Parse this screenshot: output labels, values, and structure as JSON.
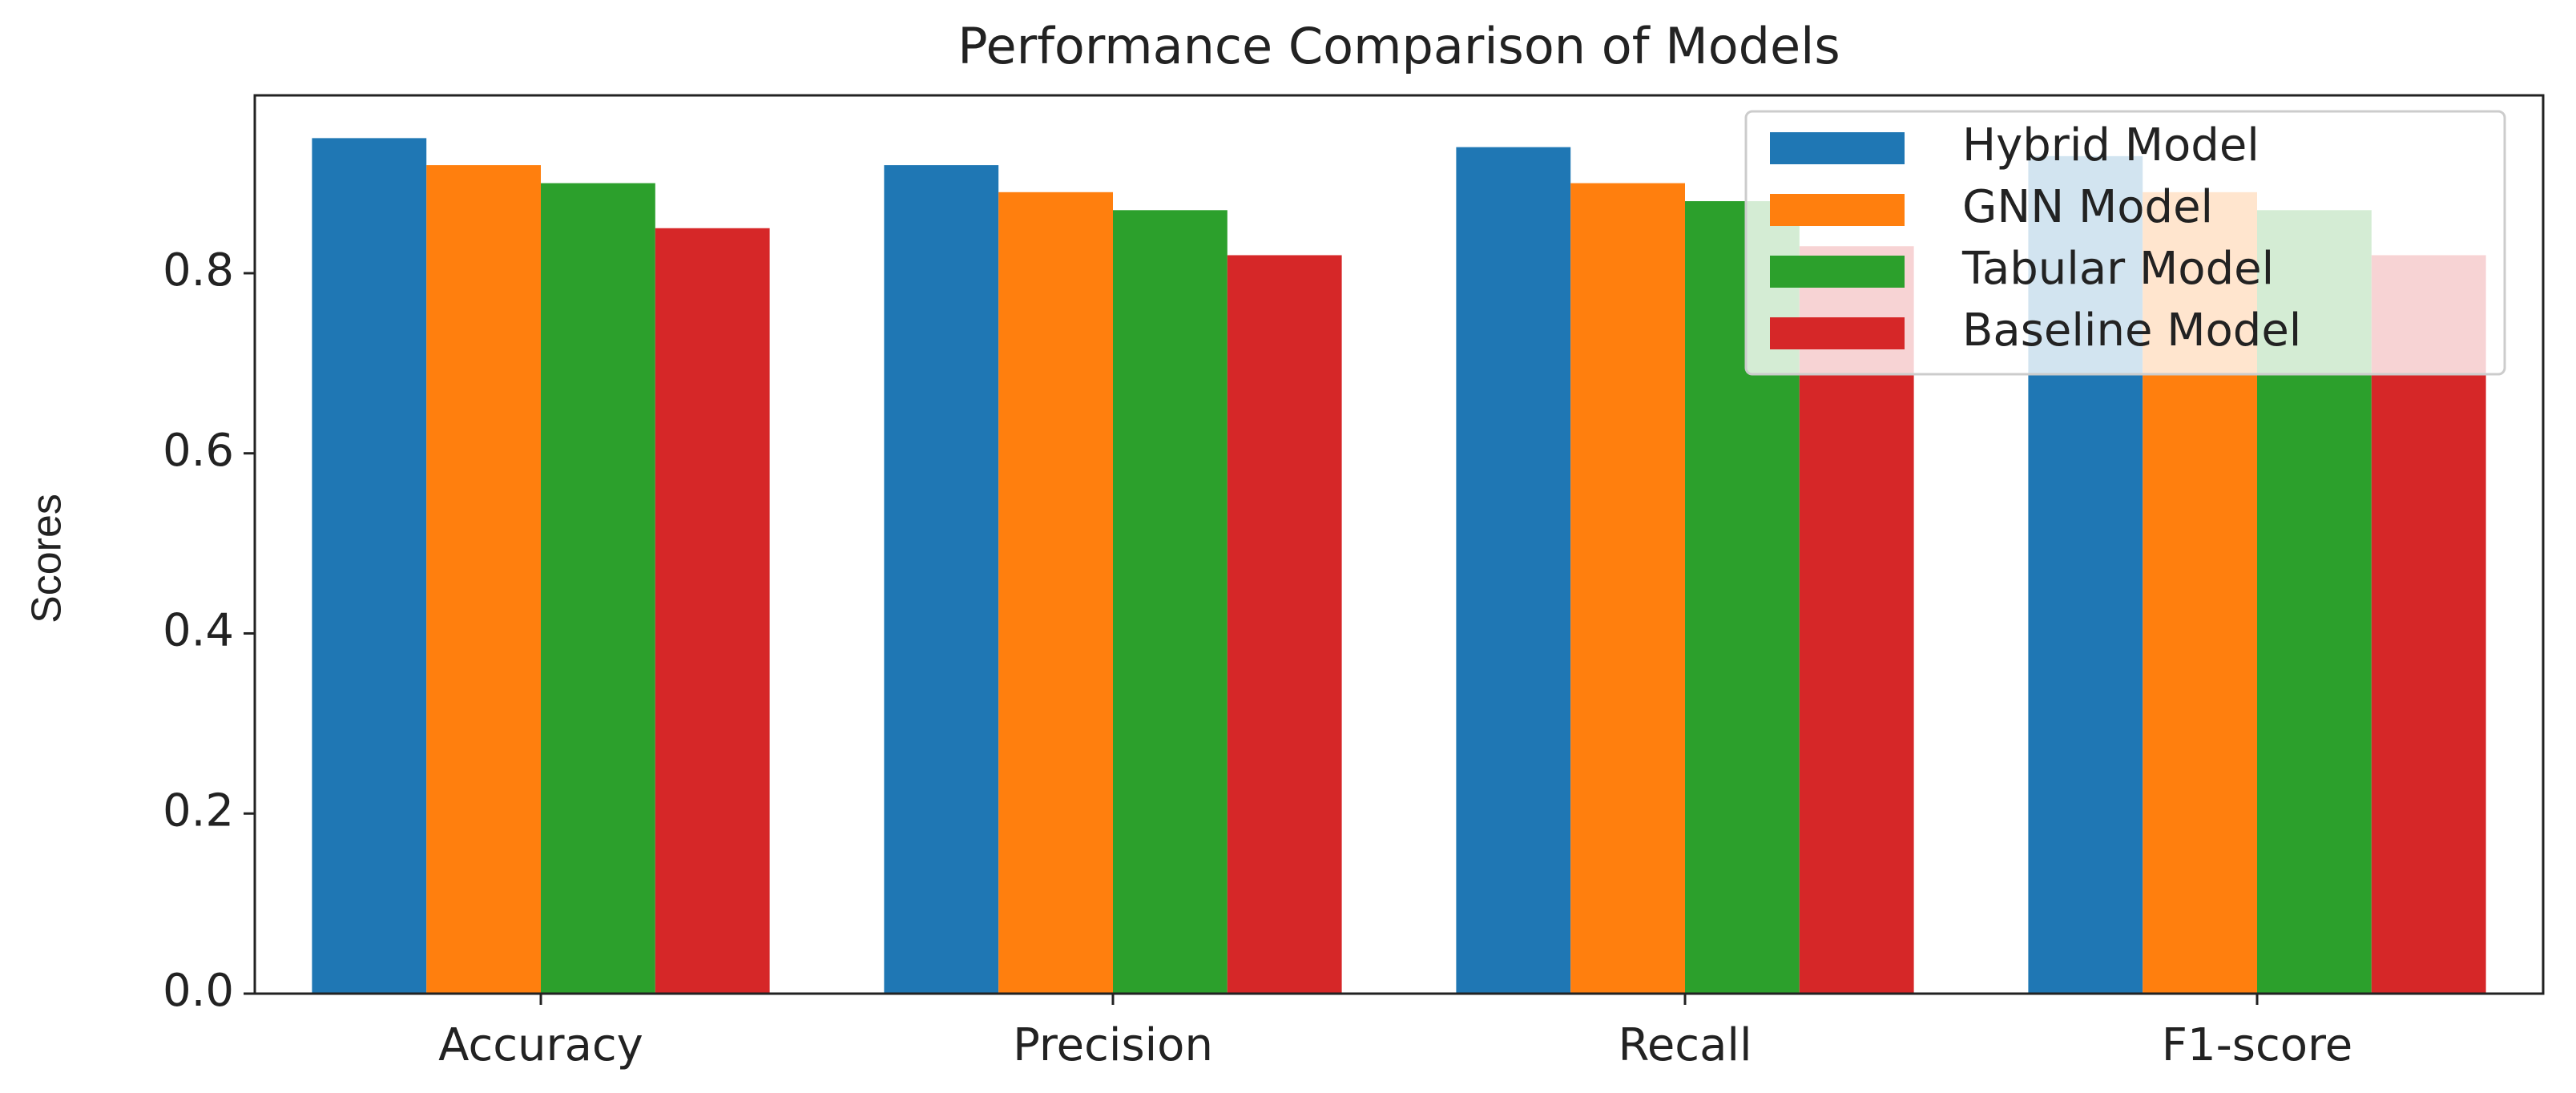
{
  "chart_data": {
    "type": "bar",
    "title": "Performance Comparison of Models",
    "y_label": "Scores",
    "categories": [
      "Accuracy",
      "Precision",
      "Recall",
      "F1-score"
    ],
    "series": [
      {
        "name": "Hybrid Model",
        "color": "#1f77b4",
        "values": [
          0.95,
          0.92,
          0.94,
          0.93
        ]
      },
      {
        "name": "GNN Model",
        "color": "#ff7f0e",
        "values": [
          0.92,
          0.89,
          0.9,
          0.89
        ]
      },
      {
        "name": "Tabular Model",
        "color": "#2ca02c",
        "values": [
          0.9,
          0.87,
          0.88,
          0.87
        ]
      },
      {
        "name": "Baseline Model",
        "color": "#d62728",
        "values": [
          0.85,
          0.82,
          0.83,
          0.82
        ]
      }
    ],
    "ylim": [
      0,
      0.9975
    ],
    "yticks": [
      {
        "value": 0,
        "label": "0.0"
      },
      0.2,
      0.4,
      0.6,
      0.8
    ],
    "legend": "upper right",
    "grid": false
  }
}
